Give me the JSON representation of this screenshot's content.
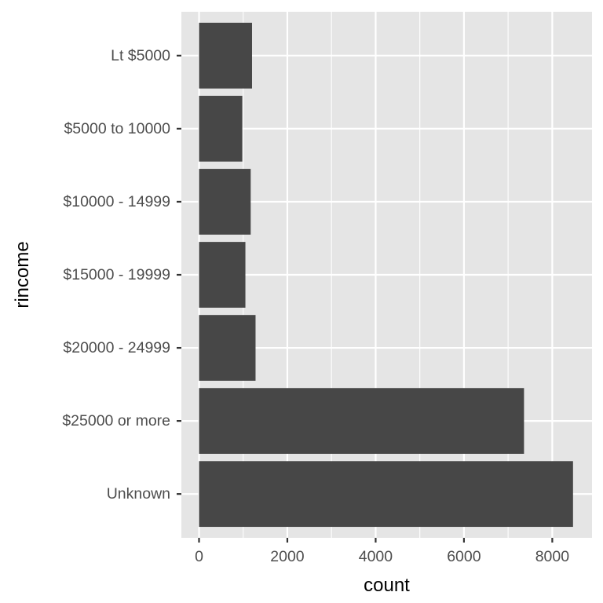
{
  "chart_data": {
    "type": "bar",
    "orientation": "horizontal",
    "categories": [
      "Lt $5000",
      "$5000 to 10000",
      "$10000 - 14999",
      "$15000 - 19999",
      "$20000 - 24999",
      "$25000 or more",
      "Unknown"
    ],
    "values": [
      1200,
      980,
      1170,
      1050,
      1280,
      7360,
      8470
    ],
    "xlabel": "count",
    "ylabel": "rincome",
    "xlim": [
      -400,
      8900
    ],
    "xticks": [
      0,
      2000,
      4000,
      6000,
      8000
    ],
    "xtick_labels": [
      "0",
      "2000",
      "4000",
      "6000",
      "8000"
    ],
    "grid": true,
    "colors": {
      "panel": "#e5e5e5",
      "grid": "#ffffff",
      "bar": "#474747",
      "tick": "#333333"
    }
  }
}
